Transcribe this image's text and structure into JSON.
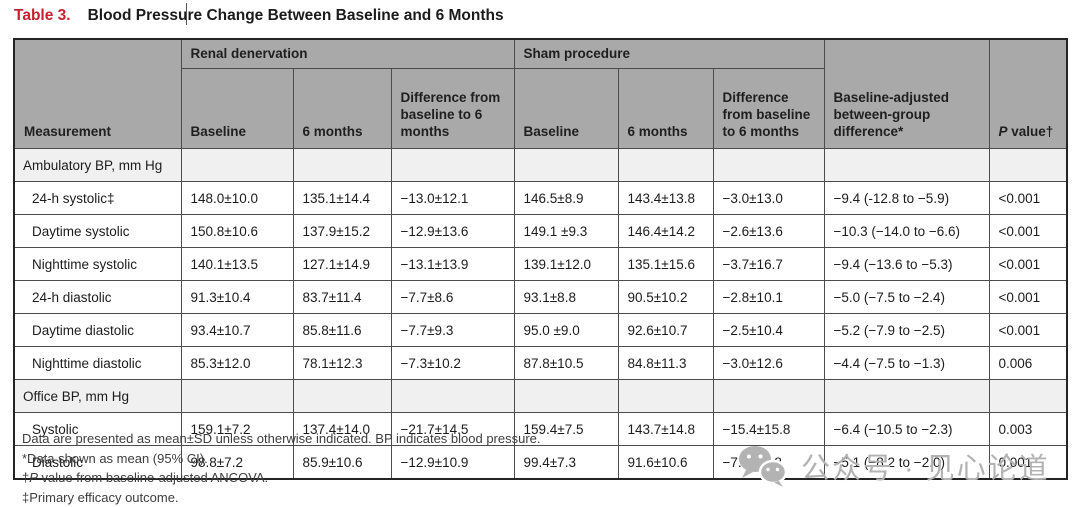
{
  "title": {
    "label": "Table 3.",
    "text": "Blood Pressure Change Between Baseline and 6 Months"
  },
  "colors": {
    "accent_red": "#c8202f",
    "header_bg": "#a9a9a9",
    "section_bg": "#f0f0f0",
    "border": "#4c4c4c",
    "watermark_gray": "#b3b3b3"
  },
  "table": {
    "header": {
      "measurement": "Measurement",
      "group1": "Renal denervation",
      "group2": "Sham procedure",
      "sub": [
        "Baseline",
        "6 months",
        "Difference from baseline to 6 months"
      ],
      "between_group": "Baseline-adjusted between-group difference*",
      "p_italic": "P",
      "p_rest": " value†"
    },
    "sections": [
      {
        "label": "Ambulatory BP, mm Hg",
        "rows": [
          {
            "label": "24-h systolic‡",
            "cells": [
              "148.0±10.0",
              "135.1±14.4",
              "−13.0±12.1",
              "146.5±8.9",
              "143.4±13.8",
              "−3.0±13.0",
              "−9.4 (-12.8 to −5.9)",
              "<0.001"
            ]
          },
          {
            "label": "Daytime systolic",
            "cells": [
              "150.8±10.6",
              "137.9±15.2",
              "−12.9±13.6",
              "149.1 ±9.3",
              "146.4±14.2",
              "−2.6±13.6",
              "−10.3 (−14.0 to −6.6)",
              "<0.001"
            ]
          },
          {
            "label": "Nighttime systolic",
            "cells": [
              "140.1±13.5",
              "127.1±14.9",
              "−13.1±13.9",
              "139.1±12.0",
              "135.1±15.6",
              "−3.7±16.7",
              "−9.4 (−13.6 to −5.3)",
              "<0.001"
            ]
          },
          {
            "label": "24-h diastolic",
            "cells": [
              "91.3±10.4",
              "83.7±11.4",
              "−7.7±8.6",
              "93.1±8.8",
              "90.5±10.2",
              "−2.8±10.1",
              "−5.0 (−7.5 to −2.4)",
              "<0.001"
            ]
          },
          {
            "label": "Daytime diastolic",
            "cells": [
              "93.4±10.7",
              "85.8±11.6",
              "−7.7±9.3",
              "95.0 ±9.0",
              "92.6±10.7",
              "−2.5±10.4",
              "−5.2 (−7.9 to −2.5)",
              "<0.001"
            ]
          },
          {
            "label": "Nighttime diastolic",
            "cells": [
              "85.3±12.0",
              "78.1±12.3",
              "−7.3±10.2",
              "87.8±10.5",
              "84.8±11.3",
              "−3.0±12.6",
              "−4.4 (−7.5 to −1.3)",
              "0.006"
            ]
          }
        ]
      },
      {
        "label": "Office BP, mm Hg",
        "rows": [
          {
            "label": "Systolic",
            "cells": [
              "159.1±7.2",
              "137.4±14.0",
              "−21.7±14.5",
              "159.4±7.5",
              "143.7±14.8",
              "−15.4±15.8",
              "−6.4 (−10.5 to −2.3)",
              "0.003"
            ]
          },
          {
            "label": "Diastolic",
            "cells": [
              "98.8±7.2",
              "85.9±10.6",
              "−12.9±10.9",
              "99.4±7.3",
              "91.6±10.6",
              "−7.8±11.8",
              "−5.1 (−8.2 to −2.0)",
              "0.001"
            ]
          }
        ]
      }
    ]
  },
  "footnotes": {
    "line1": "Data are presented as mean±SD unless otherwise indicated. BP indicates blood pressure.",
    "line2": "*Data shown as mean (95% CI).",
    "line3_pre": "†",
    "line3_italic": "P",
    "line3_post": " value from baseline-adjusted ANCOVA.",
    "line4": "‡Primary efficacy outcome."
  },
  "watermark": {
    "icon": "wechat-icon",
    "text": "公众号 · 见心论道"
  }
}
